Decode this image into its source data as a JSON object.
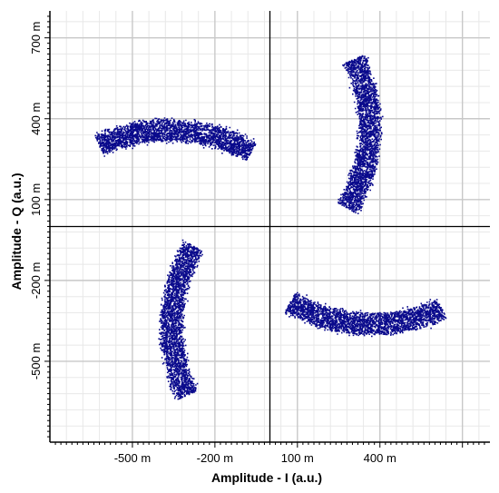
{
  "chart_data": {
    "type": "scatter",
    "title": "",
    "xlabel": "Amplitude - I (a.u.)",
    "ylabel": "Amplitude - Q (a.u.)",
    "x_unit_suffix": " m",
    "y_unit_suffix": " m",
    "xlim": [
      -800,
      800
    ],
    "ylim": [
      -800,
      800
    ],
    "x_ticks": [
      -500,
      -200,
      100,
      400
    ],
    "y_ticks": [
      -500,
      -200,
      100,
      400,
      700
    ],
    "x_tick_labels": [
      "-500 m",
      "-200 m",
      "100 m",
      "400 m"
    ],
    "y_tick_labels": [
      "-500 m",
      "-200 m",
      "100 m",
      "400 m",
      "700 m"
    ],
    "grid": true,
    "legend": "none",
    "marker_color": "#0a0a8c",
    "series": [
      {
        "arc_center": [
          -370,
          -240
        ],
        "arc_radius": 600,
        "arc_band_width": 75,
        "arc_start_deg": 115,
        "arc_end_deg": 60,
        "points_estimated": 2600
      },
      {
        "arc_center": [
          -240,
          370
        ],
        "arc_radius": 600,
        "arc_band_width": 75,
        "arc_start_deg": 25,
        "arc_end_deg": -30,
        "points_estimated": 2600
      },
      {
        "arc_center": [
          370,
          240
        ],
        "arc_radius": 600,
        "arc_band_width": 75,
        "arc_start_deg": -65,
        "arc_end_deg": -120,
        "points_estimated": 2600
      },
      {
        "arc_center": [
          240,
          -370
        ],
        "arc_radius": 600,
        "arc_band_width": 75,
        "arc_start_deg": 205,
        "arc_end_deg": 150,
        "points_estimated": 2600
      }
    ]
  }
}
